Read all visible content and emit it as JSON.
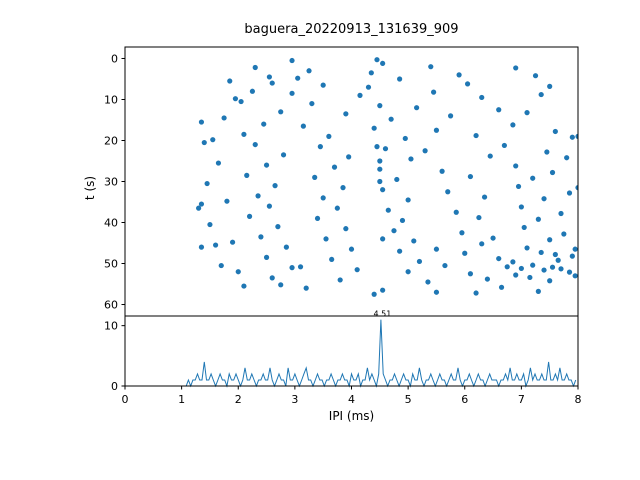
{
  "chart_data": {
    "title": "baguera_20220913_131639_909",
    "xlabel": "IPI (ms)",
    "accent_color": "#1f77b4",
    "subplots": [
      {
        "type": "scatter",
        "ylabel": "t (s)",
        "xlim": [
          0,
          8
        ],
        "ylim": [
          0,
          60
        ],
        "y_inverted": true,
        "y_ticks": [
          0,
          10,
          20,
          30,
          40,
          50,
          60
        ],
        "marker_color": "#1f77b4",
        "points": [
          [
            2.95,
            0.5
          ],
          [
            4.45,
            0.3
          ],
          [
            4.55,
            1.2
          ],
          [
            2.3,
            2.2
          ],
          [
            3.25,
            3.0
          ],
          [
            5.4,
            2.0
          ],
          [
            6.9,
            2.3
          ],
          [
            4.35,
            3.5
          ],
          [
            5.9,
            4.0
          ],
          [
            2.55,
            4.5
          ],
          [
            3.05,
            4.8
          ],
          [
            7.25,
            4.2
          ],
          [
            4.85,
            5.0
          ],
          [
            1.85,
            5.5
          ],
          [
            2.6,
            6.0
          ],
          [
            3.5,
            6.5
          ],
          [
            4.3,
            7.0
          ],
          [
            6.05,
            6.2
          ],
          [
            7.5,
            6.8
          ],
          [
            2.25,
            8.0
          ],
          [
            2.95,
            8.5
          ],
          [
            4.15,
            9.0
          ],
          [
            5.45,
            8.2
          ],
          [
            6.3,
            9.5
          ],
          [
            1.95,
            9.8
          ],
          [
            7.35,
            8.8
          ],
          [
            2.05,
            10.5
          ],
          [
            3.3,
            11.0
          ],
          [
            4.5,
            11.5
          ],
          [
            5.15,
            12.0
          ],
          [
            6.6,
            12.5
          ],
          [
            2.75,
            13.0
          ],
          [
            3.9,
            13.5
          ],
          [
            5.75,
            14.0
          ],
          [
            7.1,
            13.2
          ],
          [
            1.75,
            14.5
          ],
          [
            4.7,
            14.8
          ],
          [
            1.35,
            15.5
          ],
          [
            2.45,
            16.0
          ],
          [
            3.15,
            16.5
          ],
          [
            4.4,
            17.0
          ],
          [
            5.5,
            17.5
          ],
          [
            6.85,
            16.2
          ],
          [
            7.6,
            17.8
          ],
          [
            2.1,
            18.5
          ],
          [
            3.6,
            19.0
          ],
          [
            4.95,
            19.5
          ],
          [
            6.2,
            18.8
          ],
          [
            7.9,
            19.2
          ],
          [
            1.55,
            19.8
          ],
          [
            1.4,
            20.5
          ],
          [
            2.3,
            21.0
          ],
          [
            3.45,
            21.5
          ],
          [
            4.6,
            22.0
          ],
          [
            5.3,
            22.5
          ],
          [
            6.7,
            21.2
          ],
          [
            7.45,
            22.8
          ],
          [
            2.8,
            23.5
          ],
          [
            3.95,
            24.0
          ],
          [
            5.05,
            24.5
          ],
          [
            6.45,
            23.8
          ],
          [
            7.8,
            24.2
          ],
          [
            1.65,
            25.5
          ],
          [
            2.5,
            26.0
          ],
          [
            3.7,
            26.5
          ],
          [
            4.5,
            27.0
          ],
          [
            5.6,
            27.5
          ],
          [
            6.9,
            26.2
          ],
          [
            7.55,
            27.8
          ],
          [
            2.15,
            28.5
          ],
          [
            3.35,
            29.0
          ],
          [
            4.8,
            29.5
          ],
          [
            6.1,
            28.8
          ],
          [
            7.2,
            29.2
          ],
          [
            1.45,
            30.5
          ],
          [
            2.65,
            31.0
          ],
          [
            3.85,
            31.5
          ],
          [
            4.55,
            32.0
          ],
          [
            5.7,
            32.5
          ],
          [
            6.95,
            31.2
          ],
          [
            7.85,
            32.8
          ],
          [
            2.35,
            33.5
          ],
          [
            3.5,
            34.0
          ],
          [
            5.0,
            34.5
          ],
          [
            6.35,
            33.8
          ],
          [
            7.4,
            34.2
          ],
          [
            1.8,
            34.8
          ],
          [
            1.35,
            35.5
          ],
          [
            2.55,
            36.0
          ],
          [
            3.75,
            36.5
          ],
          [
            4.65,
            37.0
          ],
          [
            5.85,
            37.5
          ],
          [
            7.0,
            36.2
          ],
          [
            7.7,
            37.8
          ],
          [
            2.2,
            38.5
          ],
          [
            3.4,
            39.0
          ],
          [
            4.9,
            39.5
          ],
          [
            6.25,
            38.8
          ],
          [
            7.3,
            39.2
          ],
          [
            1.5,
            40.5
          ],
          [
            2.7,
            41.0
          ],
          [
            3.9,
            41.5
          ],
          [
            4.75,
            42.0
          ],
          [
            5.95,
            42.5
          ],
          [
            7.05,
            41.2
          ],
          [
            7.75,
            42.8
          ],
          [
            2.4,
            43.5
          ],
          [
            3.55,
            44.0
          ],
          [
            5.1,
            44.5
          ],
          [
            6.5,
            43.8
          ],
          [
            7.5,
            44.2
          ],
          [
            1.9,
            44.8
          ],
          [
            1.6,
            45.5
          ],
          [
            2.85,
            46.0
          ],
          [
            4.0,
            46.5
          ],
          [
            4.85,
            47.0
          ],
          [
            6.0,
            47.5
          ],
          [
            7.1,
            46.2
          ],
          [
            7.6,
            47.8
          ],
          [
            2.5,
            48.5
          ],
          [
            3.65,
            49.0
          ],
          [
            5.2,
            49.5
          ],
          [
            6.6,
            48.8
          ],
          [
            7.65,
            49.2
          ],
          [
            6.85,
            49.6
          ],
          [
            7.9,
            48.2
          ],
          [
            7.35,
            47.3
          ],
          [
            1.7,
            50.5
          ],
          [
            2.95,
            51.0
          ],
          [
            4.1,
            51.5
          ],
          [
            5.0,
            52.0
          ],
          [
            6.1,
            52.5
          ],
          [
            6.75,
            50.8
          ],
          [
            7.0,
            51.2
          ],
          [
            7.2,
            50.4
          ],
          [
            7.4,
            51.6
          ],
          [
            7.55,
            50.9
          ],
          [
            7.7,
            51.3
          ],
          [
            7.85,
            52.1
          ],
          [
            6.9,
            52.8
          ],
          [
            7.15,
            53.4
          ],
          [
            2.6,
            53.5
          ],
          [
            3.8,
            54.0
          ],
          [
            5.35,
            54.5
          ],
          [
            6.4,
            53.8
          ],
          [
            7.5,
            54.2
          ],
          [
            7.95,
            53.0
          ],
          [
            2.1,
            55.5
          ],
          [
            3.2,
            56.0
          ],
          [
            4.55,
            56.5
          ],
          [
            5.5,
            57.0
          ],
          [
            6.65,
            55.8
          ],
          [
            7.3,
            56.8
          ],
          [
            4.4,
            57.5
          ],
          [
            6.2,
            57.2
          ],
          [
            8.0,
            31.5
          ],
          [
            8.0,
            19.0
          ],
          [
            7.95,
            46.5
          ],
          [
            4.5,
            25.0
          ],
          [
            4.45,
            21.5
          ],
          [
            4.5,
            30.0
          ],
          [
            4.55,
            44.0
          ],
          [
            1.3,
            36.5
          ],
          [
            1.35,
            46.0
          ],
          [
            2.0,
            52.0
          ],
          [
            5.65,
            50.5
          ],
          [
            5.5,
            46.5
          ],
          [
            3.1,
            50.8
          ],
          [
            2.75,
            55.2
          ],
          [
            6.3,
            45.2
          ]
        ]
      },
      {
        "type": "line",
        "xlim": [
          0,
          8
        ],
        "ylim": [
          0,
          11.6
        ],
        "x_ticks": [
          0,
          1,
          2,
          3,
          4,
          5,
          6,
          7,
          8
        ],
        "y_ticks": [
          0,
          10
        ],
        "line_color": "#1f77b4",
        "x_start": 0,
        "x_step": 0.04,
        "counts": [
          0,
          0,
          0,
          0,
          0,
          0,
          0,
          0,
          0,
          0,
          0,
          0,
          0,
          0,
          0,
          0,
          0,
          0,
          0,
          0,
          0,
          0,
          0,
          0,
          0,
          0,
          0,
          0,
          1,
          0,
          1,
          1,
          2,
          1,
          1,
          4,
          1,
          1,
          2,
          1,
          0,
          1,
          2,
          1,
          1,
          0,
          2,
          1,
          1,
          2,
          1,
          0,
          1,
          3,
          1,
          1,
          2,
          1,
          0,
          1,
          1,
          2,
          1,
          1,
          3,
          1,
          0,
          1,
          2,
          1,
          1,
          0,
          3,
          1,
          1,
          2,
          1,
          0,
          1,
          2,
          3,
          1,
          1,
          0,
          1,
          2,
          1,
          1,
          0,
          1,
          1,
          2,
          1,
          0,
          1,
          1,
          2,
          1,
          1,
          0,
          2,
          1,
          1,
          2,
          0,
          1,
          1,
          3,
          1,
          2,
          1,
          0,
          2,
          11,
          2,
          1,
          0,
          1,
          1,
          2,
          1,
          0,
          1,
          2,
          1,
          1,
          0,
          2,
          1,
          1,
          3,
          1,
          0,
          1,
          1,
          2,
          1,
          0,
          1,
          2,
          1,
          1,
          0,
          1,
          2,
          1,
          1,
          3,
          1,
          0,
          1,
          1,
          2,
          1,
          0,
          1,
          2,
          1,
          1,
          0,
          1,
          2,
          1,
          1,
          1,
          0,
          1,
          1,
          2,
          1,
          3,
          1,
          1,
          2,
          1,
          1,
          2,
          0,
          1,
          3,
          1,
          2,
          1,
          1,
          2,
          1,
          1,
          4,
          1,
          1,
          2,
          1,
          3,
          1,
          1,
          2,
          1,
          1,
          0,
          1
        ],
        "annotation": {
          "label": "4.51",
          "x": 4.51,
          "y": 11
        }
      }
    ]
  }
}
